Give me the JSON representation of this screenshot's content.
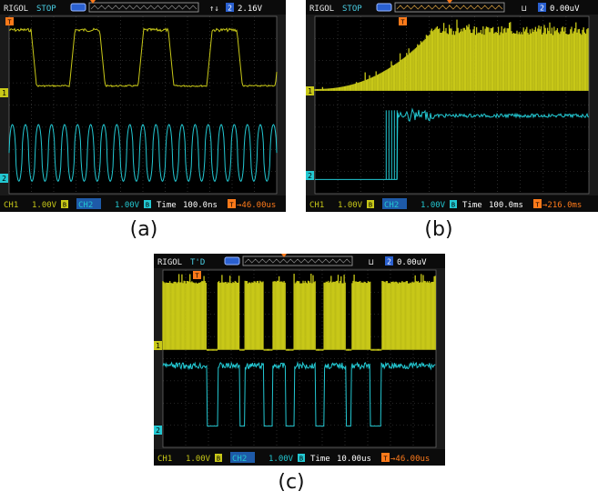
{
  "colors": {
    "ch1": "#c8c818",
    "ch2": "#23c8d2",
    "screen_bg": "#000000",
    "bar_bg": "#0b0b0b",
    "bar_text": "#4ad0e6",
    "trigger_orange": "#ff7a1a",
    "grid": "#4a4a4a",
    "brand": "#e8e8e8"
  },
  "icons": {
    "trigger_marker": "orange-T-marker",
    "battery": "battery-icon",
    "rising_edge": "rising-edge-icon",
    "ch_marker": "channel-marker"
  },
  "panels": [
    {
      "id": "a",
      "caption": "(a)",
      "top": {
        "brand": "RIGOL",
        "status": "STOP",
        "trig_edge": "↑↓",
        "trig_ch": "2",
        "trig_level": "2.16V"
      },
      "bottom": {
        "ch1": "CH1",
        "ch1_scale": "1.00V",
        "ch1_coupling": "B",
        "ch2": "CH2",
        "ch2_scale": "1.00V",
        "ch2_coupling": "B",
        "time_label": "Time",
        "time_value": "100.0ns",
        "trig_offset": "46.00us"
      },
      "ch_labels": {
        "ch1": "1",
        "ch2": "2"
      }
    },
    {
      "id": "b",
      "caption": "(b)",
      "top": {
        "brand": "RIGOL",
        "status": "STOP",
        "trig_edge": "⊔",
        "trig_ch": "2",
        "trig_level": "0.00uV"
      },
      "bottom": {
        "ch1": "CH1",
        "ch1_scale": "1.00V",
        "ch1_coupling": "B",
        "ch2": "CH2",
        "ch2_scale": "1.00V",
        "ch2_coupling": "B",
        "time_label": "Time",
        "time_value": "100.0ms",
        "trig_offset": "216.0ms"
      },
      "ch_labels": {
        "ch1": "1",
        "ch2": "2"
      }
    },
    {
      "id": "c",
      "caption": "(c)",
      "top": {
        "brand": "RIGOL",
        "status": "T'D",
        "trig_edge": "⊔",
        "trig_ch": "2",
        "trig_level": "0.00uV"
      },
      "bottom": {
        "ch1": "CH1",
        "ch1_scale": "1.00V",
        "ch1_coupling": "B",
        "ch2": "CH2",
        "ch2_scale": "1.00V",
        "ch2_coupling": "B",
        "time_label": "Time",
        "time_value": "10.00us",
        "trig_offset": "46.00us"
      },
      "ch_labels": {
        "ch1": "1",
        "ch2": "2"
      }
    }
  ]
}
